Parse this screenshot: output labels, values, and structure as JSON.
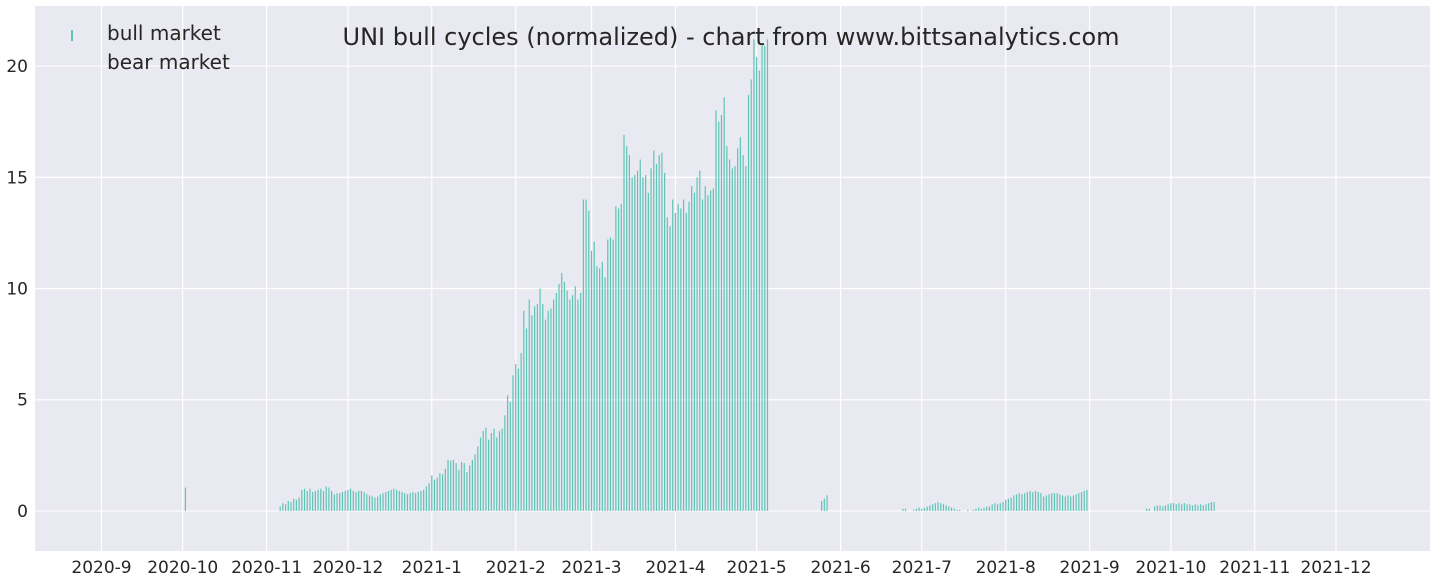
{
  "chart_data": {
    "type": "bar",
    "title": "UNI bull cycles (normalized)  - chart from www.bittsanalytics.com",
    "xlabel": "",
    "ylabel": "",
    "ylim": [
      -1.8,
      22.7
    ],
    "y_ticks": [
      0,
      5,
      10,
      15,
      20
    ],
    "x_tick_labels": [
      "2020-9",
      "2020-10",
      "2020-11",
      "2020-12",
      "2021-1",
      "2021-2",
      "2021-3",
      "2021-4",
      "2021-5",
      "2021-6",
      "2021-7",
      "2021-8",
      "2021-9",
      "2021-10",
      "2021-11",
      "2021-12"
    ],
    "grid": true,
    "legend_position": "top-left",
    "colors": {
      "bull": "#5ec4b6",
      "background": "#e9e9f1",
      "grid": "#ffffff"
    },
    "series": [
      {
        "name": "bull market",
        "points": [
          [
            "2020-10-02",
            1.05
          ],
          [
            "2020-11-06",
            0.2
          ],
          [
            "2020-11-07",
            0.35
          ],
          [
            "2020-11-08",
            0.3
          ],
          [
            "2020-11-09",
            0.45
          ],
          [
            "2020-11-10",
            0.4
          ],
          [
            "2020-11-11",
            0.55
          ],
          [
            "2020-11-12",
            0.5
          ],
          [
            "2020-11-13",
            0.6
          ],
          [
            "2020-11-14",
            0.95
          ],
          [
            "2020-11-15",
            1.0
          ],
          [
            "2020-11-16",
            0.9
          ],
          [
            "2020-11-17",
            1.0
          ],
          [
            "2020-11-18",
            0.85
          ],
          [
            "2020-11-19",
            0.9
          ],
          [
            "2020-11-20",
            0.95
          ],
          [
            "2020-11-21",
            1.0
          ],
          [
            "2020-11-22",
            0.9
          ],
          [
            "2020-11-23",
            1.1
          ],
          [
            "2020-11-24",
            1.05
          ],
          [
            "2020-11-25",
            0.9
          ],
          [
            "2020-11-26",
            0.75
          ],
          [
            "2020-11-27",
            0.8
          ],
          [
            "2020-11-28",
            0.8
          ],
          [
            "2020-11-29",
            0.85
          ],
          [
            "2020-11-30",
            0.9
          ],
          [
            "2020-12-01",
            0.95
          ],
          [
            "2020-12-02",
            1.0
          ],
          [
            "2020-12-03",
            0.9
          ],
          [
            "2020-12-04",
            0.85
          ],
          [
            "2020-12-05",
            0.9
          ],
          [
            "2020-12-06",
            0.9
          ],
          [
            "2020-12-07",
            0.85
          ],
          [
            "2020-12-08",
            0.75
          ],
          [
            "2020-12-09",
            0.7
          ],
          [
            "2020-12-10",
            0.65
          ],
          [
            "2020-12-11",
            0.6
          ],
          [
            "2020-12-12",
            0.65
          ],
          [
            "2020-12-13",
            0.75
          ],
          [
            "2020-12-14",
            0.8
          ],
          [
            "2020-12-15",
            0.85
          ],
          [
            "2020-12-16",
            0.9
          ],
          [
            "2020-12-17",
            0.95
          ],
          [
            "2020-12-18",
            1.0
          ],
          [
            "2020-12-19",
            0.95
          ],
          [
            "2020-12-20",
            0.9
          ],
          [
            "2020-12-21",
            0.85
          ],
          [
            "2020-12-22",
            0.8
          ],
          [
            "2020-12-23",
            0.75
          ],
          [
            "2020-12-24",
            0.8
          ],
          [
            "2020-12-25",
            0.85
          ],
          [
            "2020-12-26",
            0.8
          ],
          [
            "2020-12-27",
            0.85
          ],
          [
            "2020-12-28",
            0.9
          ],
          [
            "2020-12-29",
            0.95
          ],
          [
            "2020-12-30",
            1.1
          ],
          [
            "2020-12-31",
            1.25
          ],
          [
            "2021-01-01",
            1.6
          ],
          [
            "2021-01-02",
            1.4
          ],
          [
            "2021-01-03",
            1.5
          ],
          [
            "2021-01-04",
            1.7
          ],
          [
            "2021-01-05",
            1.65
          ],
          [
            "2021-01-06",
            1.9
          ],
          [
            "2021-01-07",
            2.3
          ],
          [
            "2021-01-08",
            2.25
          ],
          [
            "2021-01-09",
            2.3
          ],
          [
            "2021-01-10",
            2.15
          ],
          [
            "2021-01-11",
            1.85
          ],
          [
            "2021-01-12",
            2.2
          ],
          [
            "2021-01-13",
            2.15
          ],
          [
            "2021-01-14",
            1.75
          ],
          [
            "2021-01-15",
            2.05
          ],
          [
            "2021-01-16",
            2.3
          ],
          [
            "2021-01-17",
            2.55
          ],
          [
            "2021-01-18",
            2.9
          ],
          [
            "2021-01-19",
            3.3
          ],
          [
            "2021-01-20",
            3.6
          ],
          [
            "2021-01-21",
            3.75
          ],
          [
            "2021-01-22",
            3.2
          ],
          [
            "2021-01-23",
            3.5
          ],
          [
            "2021-01-24",
            3.7
          ],
          [
            "2021-01-25",
            3.3
          ],
          [
            "2021-01-26",
            3.6
          ],
          [
            "2021-01-27",
            3.7
          ],
          [
            "2021-01-28",
            4.3
          ],
          [
            "2021-01-29",
            5.2
          ],
          [
            "2021-01-30",
            4.9
          ],
          [
            "2021-01-31",
            6.1
          ],
          [
            "2021-02-01",
            6.6
          ],
          [
            "2021-02-02",
            6.4
          ],
          [
            "2021-02-03",
            7.1
          ],
          [
            "2021-02-04",
            9.0
          ],
          [
            "2021-02-05",
            8.2
          ],
          [
            "2021-02-06",
            9.5
          ],
          [
            "2021-02-07",
            8.8
          ],
          [
            "2021-02-08",
            9.2
          ],
          [
            "2021-02-09",
            9.3
          ],
          [
            "2021-02-10",
            10.0
          ],
          [
            "2021-02-11",
            9.3
          ],
          [
            "2021-02-12",
            8.6
          ],
          [
            "2021-02-13",
            9.0
          ],
          [
            "2021-02-14",
            9.1
          ],
          [
            "2021-02-15",
            9.5
          ],
          [
            "2021-02-16",
            9.8
          ],
          [
            "2021-02-17",
            10.2
          ],
          [
            "2021-02-18",
            10.7
          ],
          [
            "2021-02-19",
            10.3
          ],
          [
            "2021-02-20",
            9.9
          ],
          [
            "2021-02-21",
            9.5
          ],
          [
            "2021-02-22",
            9.7
          ],
          [
            "2021-02-23",
            10.1
          ],
          [
            "2021-02-24",
            9.5
          ],
          [
            "2021-02-25",
            9.8
          ],
          [
            "2021-02-26",
            14.0
          ],
          [
            "2021-02-27",
            14.0
          ],
          [
            "2021-02-28",
            13.5
          ],
          [
            "2021-03-01",
            11.7
          ],
          [
            "2021-03-02",
            12.1
          ],
          [
            "2021-03-03",
            11.0
          ],
          [
            "2021-03-04",
            10.9
          ],
          [
            "2021-03-05",
            11.2
          ],
          [
            "2021-03-06",
            10.5
          ],
          [
            "2021-03-07",
            12.2
          ],
          [
            "2021-03-08",
            12.3
          ],
          [
            "2021-03-09",
            12.2
          ],
          [
            "2021-03-10",
            13.7
          ],
          [
            "2021-03-11",
            13.6
          ],
          [
            "2021-03-12",
            13.8
          ],
          [
            "2021-03-13",
            16.9
          ],
          [
            "2021-03-14",
            16.4
          ],
          [
            "2021-03-15",
            16.0
          ],
          [
            "2021-03-16",
            15.0
          ],
          [
            "2021-03-17",
            15.1
          ],
          [
            "2021-03-18",
            15.3
          ],
          [
            "2021-03-19",
            15.8
          ],
          [
            "2021-03-20",
            15.0
          ],
          [
            "2021-03-21",
            15.1
          ],
          [
            "2021-03-22",
            14.3
          ],
          [
            "2021-03-23",
            15.4
          ],
          [
            "2021-03-24",
            16.2
          ],
          [
            "2021-03-25",
            15.6
          ],
          [
            "2021-03-26",
            16.0
          ],
          [
            "2021-03-27",
            16.1
          ],
          [
            "2021-03-28",
            15.2
          ],
          [
            "2021-03-29",
            13.2
          ],
          [
            "2021-03-30",
            12.8
          ],
          [
            "2021-03-31",
            14.0
          ],
          [
            "2021-04-01",
            13.4
          ],
          [
            "2021-04-02",
            13.8
          ],
          [
            "2021-04-03",
            13.6
          ],
          [
            "2021-04-04",
            14.0
          ],
          [
            "2021-04-05",
            13.4
          ],
          [
            "2021-04-06",
            13.9
          ],
          [
            "2021-04-07",
            14.6
          ],
          [
            "2021-04-08",
            14.3
          ],
          [
            "2021-04-09",
            15.0
          ],
          [
            "2021-04-10",
            15.3
          ],
          [
            "2021-04-11",
            14.0
          ],
          [
            "2021-04-12",
            14.6
          ],
          [
            "2021-04-13",
            14.2
          ],
          [
            "2021-04-14",
            14.4
          ],
          [
            "2021-04-15",
            14.5
          ],
          [
            "2021-04-16",
            18.0
          ],
          [
            "2021-04-17",
            17.5
          ],
          [
            "2021-04-18",
            17.8
          ],
          [
            "2021-04-19",
            18.6
          ],
          [
            "2021-04-20",
            16.4
          ],
          [
            "2021-04-21",
            15.8
          ],
          [
            "2021-04-22",
            15.4
          ],
          [
            "2021-04-23",
            15.5
          ],
          [
            "2021-04-24",
            16.3
          ],
          [
            "2021-04-25",
            16.8
          ],
          [
            "2021-04-26",
            16.0
          ],
          [
            "2021-04-27",
            15.5
          ],
          [
            "2021-04-28",
            18.7
          ],
          [
            "2021-04-29",
            19.4
          ],
          [
            "2021-04-30",
            21.2
          ],
          [
            "2021-05-01",
            20.4
          ],
          [
            "2021-05-02",
            19.8
          ],
          [
            "2021-05-03",
            21.0
          ],
          [
            "2021-05-04",
            20.9
          ],
          [
            "2021-05-05",
            21.2
          ],
          [
            "2021-05-25",
            0.45
          ],
          [
            "2021-05-26",
            0.55
          ],
          [
            "2021-05-27",
            0.7
          ],
          [
            "2021-06-24",
            0.1
          ],
          [
            "2021-06-25",
            0.1
          ],
          [
            "2021-06-28",
            0.05
          ],
          [
            "2021-06-29",
            0.1
          ],
          [
            "2021-06-30",
            0.15
          ],
          [
            "2021-07-01",
            0.1
          ],
          [
            "2021-07-02",
            0.15
          ],
          [
            "2021-07-03",
            0.2
          ],
          [
            "2021-07-04",
            0.25
          ],
          [
            "2021-07-05",
            0.3
          ],
          [
            "2021-07-06",
            0.35
          ],
          [
            "2021-07-07",
            0.4
          ],
          [
            "2021-07-08",
            0.35
          ],
          [
            "2021-07-09",
            0.3
          ],
          [
            "2021-07-10",
            0.25
          ],
          [
            "2021-07-11",
            0.2
          ],
          [
            "2021-07-12",
            0.15
          ],
          [
            "2021-07-13",
            0.1
          ],
          [
            "2021-07-14",
            0.05
          ],
          [
            "2021-07-15",
            0.05
          ],
          [
            "2021-07-18",
            0.05
          ],
          [
            "2021-07-20",
            0.05
          ],
          [
            "2021-07-21",
            0.1
          ],
          [
            "2021-07-22",
            0.15
          ],
          [
            "2021-07-23",
            0.1
          ],
          [
            "2021-07-24",
            0.15
          ],
          [
            "2021-07-25",
            0.2
          ],
          [
            "2021-07-26",
            0.2
          ],
          [
            "2021-07-27",
            0.3
          ],
          [
            "2021-07-28",
            0.35
          ],
          [
            "2021-07-29",
            0.3
          ],
          [
            "2021-07-30",
            0.35
          ],
          [
            "2021-07-31",
            0.4
          ],
          [
            "2021-08-01",
            0.5
          ],
          [
            "2021-08-02",
            0.55
          ],
          [
            "2021-08-03",
            0.6
          ],
          [
            "2021-08-04",
            0.7
          ],
          [
            "2021-08-05",
            0.75
          ],
          [
            "2021-08-06",
            0.8
          ],
          [
            "2021-08-07",
            0.75
          ],
          [
            "2021-08-08",
            0.8
          ],
          [
            "2021-08-09",
            0.85
          ],
          [
            "2021-08-10",
            0.9
          ],
          [
            "2021-08-11",
            0.85
          ],
          [
            "2021-08-12",
            0.9
          ],
          [
            "2021-08-13",
            0.85
          ],
          [
            "2021-08-14",
            0.8
          ],
          [
            "2021-08-15",
            0.65
          ],
          [
            "2021-08-16",
            0.7
          ],
          [
            "2021-08-17",
            0.75
          ],
          [
            "2021-08-18",
            0.8
          ],
          [
            "2021-08-19",
            0.8
          ],
          [
            "2021-08-20",
            0.8
          ],
          [
            "2021-08-21",
            0.75
          ],
          [
            "2021-08-22",
            0.7
          ],
          [
            "2021-08-23",
            0.65
          ],
          [
            "2021-08-24",
            0.7
          ],
          [
            "2021-08-25",
            0.65
          ],
          [
            "2021-08-26",
            0.7
          ],
          [
            "2021-08-27",
            0.75
          ],
          [
            "2021-08-28",
            0.8
          ],
          [
            "2021-08-29",
            0.85
          ],
          [
            "2021-08-30",
            0.9
          ],
          [
            "2021-08-31",
            0.95
          ],
          [
            "2021-09-22",
            0.1
          ],
          [
            "2021-09-23",
            0.1
          ],
          [
            "2021-09-25",
            0.2
          ],
          [
            "2021-09-26",
            0.25
          ],
          [
            "2021-09-27",
            0.25
          ],
          [
            "2021-09-28",
            0.2
          ],
          [
            "2021-09-29",
            0.25
          ],
          [
            "2021-09-30",
            0.3
          ],
          [
            "2021-10-01",
            0.35
          ],
          [
            "2021-10-02",
            0.35
          ],
          [
            "2021-10-03",
            0.3
          ],
          [
            "2021-10-04",
            0.35
          ],
          [
            "2021-10-05",
            0.3
          ],
          [
            "2021-10-06",
            0.35
          ],
          [
            "2021-10-07",
            0.3
          ],
          [
            "2021-10-08",
            0.3
          ],
          [
            "2021-10-09",
            0.25
          ],
          [
            "2021-10-10",
            0.3
          ],
          [
            "2021-10-11",
            0.25
          ],
          [
            "2021-10-12",
            0.3
          ],
          [
            "2021-10-13",
            0.25
          ],
          [
            "2021-10-14",
            0.3
          ],
          [
            "2021-10-15",
            0.35
          ],
          [
            "2021-10-16",
            0.4
          ],
          [
            "2021-10-17",
            0.4
          ]
        ]
      },
      {
        "name": "bear market",
        "points": []
      }
    ]
  }
}
